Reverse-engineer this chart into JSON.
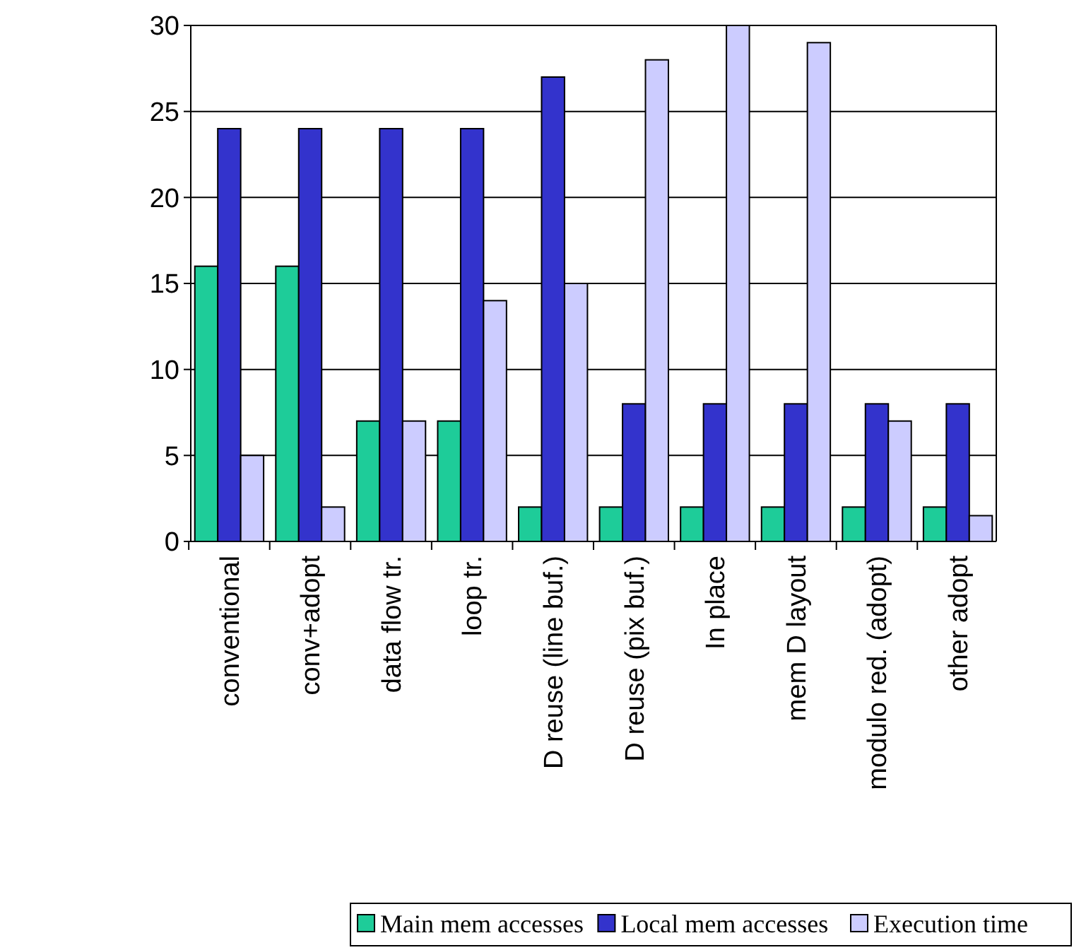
{
  "chart_data": {
    "type": "bar",
    "categories": [
      "conventional",
      "conv+adopt",
      "data flow tr.",
      "loop tr.",
      "D reuse (line buf.)",
      "D reuse (pix buf.)",
      "In place",
      "mem D layout",
      "modulo red. (adopt)",
      "other adopt"
    ],
    "series": [
      {
        "name": "Main mem accesses",
        "color": "#1ecc99",
        "values": [
          16,
          16,
          7,
          7,
          2,
          2,
          2,
          2,
          2,
          2
        ]
      },
      {
        "name": "Local mem accesses",
        "color": "#3333cc",
        "values": [
          24,
          24,
          24,
          24,
          27,
          8,
          8,
          8,
          8,
          8
        ]
      },
      {
        "name": "Execution time",
        "color": "#ccccff",
        "values": [
          5,
          2,
          7,
          14,
          15,
          28,
          30,
          29,
          7,
          1.5
        ]
      }
    ],
    "ylim": [
      0,
      30
    ],
    "yticks": [
      0,
      5,
      10,
      15,
      20,
      25,
      30
    ],
    "grid": "y",
    "legend": "bottom"
  }
}
